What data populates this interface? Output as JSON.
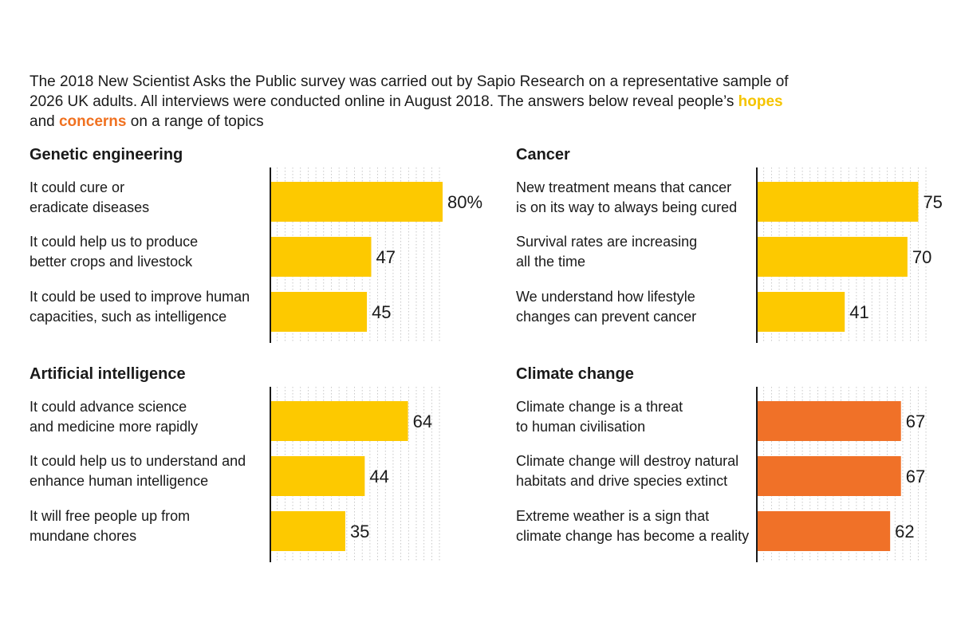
{
  "intro": {
    "text_before": "The 2018 New Scientist Asks the Public survey was carried out by Sapio Research on a representative sample of 2026 UK adults. All interviews were conducted online in August 2018. The answers below reveal people’s ",
    "hopes_word": "hopes",
    "and_word": " and ",
    "concerns_word": "concerns",
    "text_after": " on a range of topics"
  },
  "colors": {
    "hope": "#FDC900",
    "concern": "#F07128",
    "axis": "#1a1a1a",
    "grid": "#bbbbbb"
  },
  "chart_data": [
    {
      "type": "bar",
      "orientation": "horizontal",
      "title": "Genetic engineering",
      "sentiment": "hope",
      "xlim": [
        0,
        80
      ],
      "categories": [
        "It could cure or eradicate diseases",
        "It could help us to produce better crops and livestock",
        "It could be used to improve human capacities, such as intelligence"
      ],
      "label_lines": [
        [
          "It could cure or",
          "eradicate diseases"
        ],
        [
          "It could help us to produce",
          "better crops and livestock"
        ],
        [
          "It could be used to improve human",
          "capacities, such as intelligence"
        ]
      ],
      "values": [
        80,
        47,
        45
      ],
      "value_labels": [
        "80%",
        "47",
        "45"
      ]
    },
    {
      "type": "bar",
      "orientation": "horizontal",
      "title": "Cancer",
      "sentiment": "hope",
      "xlim": [
        0,
        80
      ],
      "categories": [
        "New treatment means that cancer is on its way to always being cured",
        "Survival rates are increasing all the time",
        "We understand how lifestyle changes can prevent cancer"
      ],
      "label_lines": [
        [
          "New treatment means that cancer",
          "is on its way to always being cured"
        ],
        [
          "Survival rates are increasing",
          "all the time"
        ],
        [
          "We understand how lifestyle",
          "changes can prevent cancer"
        ]
      ],
      "values": [
        75,
        70,
        41
      ],
      "value_labels": [
        "75",
        "70",
        "41"
      ]
    },
    {
      "type": "bar",
      "orientation": "horizontal",
      "title": "Artificial intelligence",
      "sentiment": "hope",
      "xlim": [
        0,
        80
      ],
      "categories": [
        "It could advance science and medicine more rapidly",
        "It could help us to understand and enhance human intelligence",
        "It will free people up from mundane chores"
      ],
      "label_lines": [
        [
          "It could advance science",
          "and medicine more rapidly"
        ],
        [
          "It could help us to understand and",
          "enhance human intelligence"
        ],
        [
          "It will free people up from",
          "mundane chores"
        ]
      ],
      "values": [
        64,
        44,
        35
      ],
      "value_labels": [
        "64",
        "44",
        "35"
      ]
    },
    {
      "type": "bar",
      "orientation": "horizontal",
      "title": "Climate change",
      "sentiment": "concern",
      "xlim": [
        0,
        80
      ],
      "categories": [
        "Climate change is a threat to human civilisation",
        "Climate change will destroy natural habitats and drive species extinct",
        "Extreme weather is a sign that climate change has become a reality"
      ],
      "label_lines": [
        [
          "Climate change is a threat",
          "to human civilisation"
        ],
        [
          "Climate change will destroy natural",
          "habitats and drive species extinct"
        ],
        [
          "Extreme weather is a sign that",
          "climate change has become a reality"
        ]
      ],
      "values": [
        67,
        67,
        62
      ],
      "value_labels": [
        "67",
        "67",
        "62"
      ]
    }
  ]
}
